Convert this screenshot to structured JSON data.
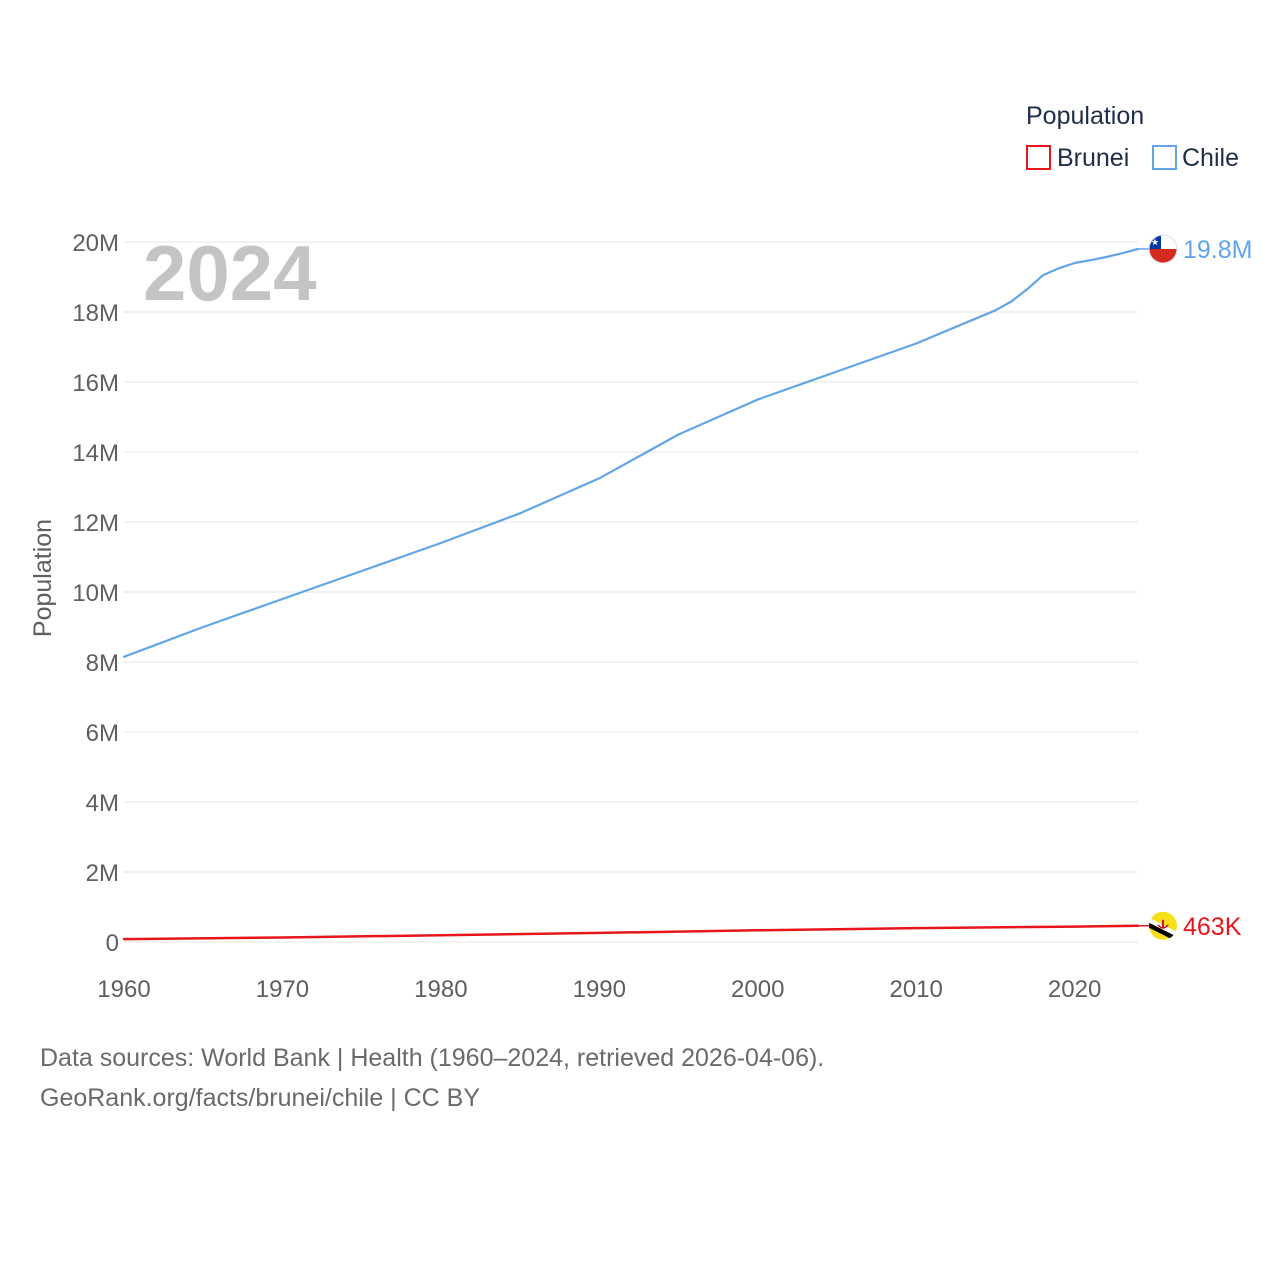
{
  "chart_data": {
    "type": "line",
    "current_year": "2024",
    "legend": {
      "title": "Population",
      "placement": "top-right",
      "items": [
        {
          "label": "Brunei",
          "color": "#e8161b"
        },
        {
          "label": "Chile",
          "color": "#62a5e6"
        }
      ]
    },
    "ylabel": "Population",
    "xlim": [
      1960,
      2024
    ],
    "ylim": [
      0,
      20000000
    ],
    "x_ticks": [
      {
        "value": 1960,
        "label": "1960"
      },
      {
        "value": 1970,
        "label": "1970"
      },
      {
        "value": 1980,
        "label": "1980"
      },
      {
        "value": 1990,
        "label": "1990"
      },
      {
        "value": 2000,
        "label": "2000"
      },
      {
        "value": 2010,
        "label": "2010"
      },
      {
        "value": 2020,
        "label": "2020"
      }
    ],
    "y_ticks": [
      {
        "value": 0,
        "label": "0"
      },
      {
        "value": 2000000,
        "label": "2M"
      },
      {
        "value": 4000000,
        "label": "4M"
      },
      {
        "value": 6000000,
        "label": "6M"
      },
      {
        "value": 8000000,
        "label": "8M"
      },
      {
        "value": 10000000,
        "label": "10M"
      },
      {
        "value": 12000000,
        "label": "12M"
      },
      {
        "value": 14000000,
        "label": "14M"
      },
      {
        "value": 16000000,
        "label": "16M"
      },
      {
        "value": 18000000,
        "label": "18M"
      },
      {
        "value": 20000000,
        "label": "20M"
      }
    ],
    "grid": true,
    "series": [
      {
        "name": "Chile",
        "color": "#62a5e6",
        "end_label": "19.8M",
        "flag_icon": "chile-flag-icon",
        "points": [
          [
            1960,
            8150000
          ],
          [
            1965,
            9000000
          ],
          [
            1970,
            9800000
          ],
          [
            1975,
            10600000
          ],
          [
            1980,
            11400000
          ],
          [
            1985,
            12250000
          ],
          [
            1990,
            13250000
          ],
          [
            1995,
            14500000
          ],
          [
            2000,
            15500000
          ],
          [
            2005,
            16300000
          ],
          [
            2010,
            17100000
          ],
          [
            2015,
            18050000
          ],
          [
            2016,
            18300000
          ],
          [
            2017,
            18650000
          ],
          [
            2018,
            19050000
          ],
          [
            2019,
            19250000
          ],
          [
            2020,
            19400000
          ],
          [
            2021,
            19480000
          ],
          [
            2022,
            19570000
          ],
          [
            2023,
            19680000
          ],
          [
            2024,
            19800000
          ]
        ]
      },
      {
        "name": "Brunei",
        "color": "#e8161b",
        "end_label": "463K",
        "flag_icon": "brunei-flag-icon",
        "points": [
          [
            1960,
            82000
          ],
          [
            1970,
            130000
          ],
          [
            1980,
            193000
          ],
          [
            1990,
            259000
          ],
          [
            2000,
            333000
          ],
          [
            2010,
            397000
          ],
          [
            2020,
            441000
          ],
          [
            2024,
            463000
          ]
        ]
      }
    ]
  },
  "footer": {
    "sources": "Data sources: World Bank | Health (1960–2024, retrieved 2026-04-06).",
    "credit": "GeoRank.org/facts/brunei/chile | CC BY"
  }
}
